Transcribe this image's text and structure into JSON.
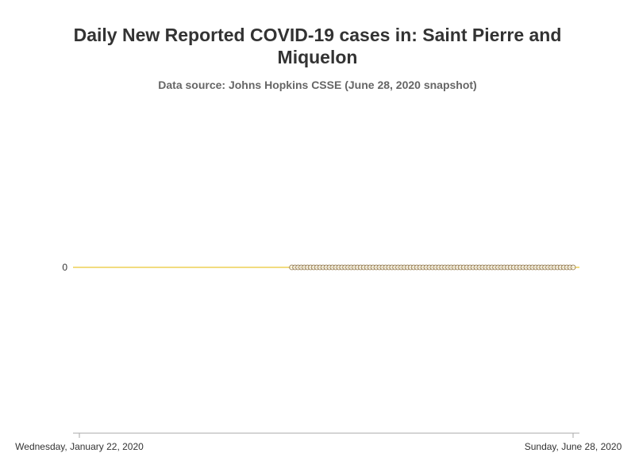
{
  "chart_data": {
    "type": "line",
    "title": "Daily New Reported COVID-19 cases in: Saint Pierre and Miquelon",
    "subtitle": "Data source: Johns Hopkins CSSE (June 28, 2020 snapshot)",
    "xlabel": "",
    "ylabel": "",
    "x_start": "2020-01-22",
    "x_end": "2020-06-28",
    "x_tick_labels": [
      "Wednesday, January 22, 2020",
      "Sunday, June 28, 2020"
    ],
    "y_tick_labels": [
      "0"
    ],
    "series": [
      {
        "marker_start": "2020-03-30",
        "marker_end": "2020-06-28",
        "values_constant": 0
      }
    ],
    "grid": false,
    "legend": "none",
    "colors": {
      "line": "#e6b800",
      "marker_stroke": "#8a6d3b",
      "axis": "#aaaaaa"
    }
  }
}
